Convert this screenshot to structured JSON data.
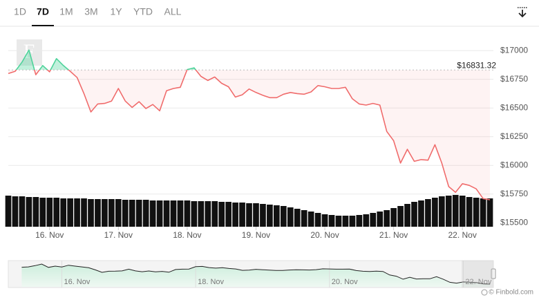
{
  "range_buttons": [
    "1D",
    "7D",
    "1M",
    "3M",
    "1Y",
    "YTD",
    "ALL"
  ],
  "selected_range": "7D",
  "watermark": "F",
  "credit": "© Finbold.com",
  "chart_data": {
    "type": "line",
    "x": [
      15.4,
      15.5,
      15.6,
      15.7,
      15.8,
      15.9,
      16.0,
      16.1,
      16.2,
      16.3,
      16.4,
      16.5,
      16.6,
      16.7,
      16.8,
      16.9,
      17.0,
      17.1,
      17.2,
      17.3,
      17.4,
      17.5,
      17.6,
      17.7,
      17.8,
      17.9,
      18.0,
      18.1,
      18.2,
      18.3,
      18.4,
      18.5,
      18.6,
      18.7,
      18.8,
      18.9,
      19.0,
      19.1,
      19.2,
      19.3,
      19.4,
      19.5,
      19.6,
      19.7,
      19.8,
      19.9,
      20.0,
      20.1,
      20.2,
      20.3,
      20.4,
      20.5,
      20.6,
      20.7,
      20.8,
      20.9,
      21.0,
      21.1,
      21.2,
      21.3,
      21.4,
      21.5,
      21.6,
      21.7,
      21.8,
      21.9,
      22.0,
      22.1,
      22.2,
      22.3,
      22.4
    ],
    "values": [
      16800,
      16820,
      16900,
      17005,
      16790,
      16870,
      16815,
      16930,
      16870,
      16820,
      16765,
      16625,
      16465,
      16535,
      16540,
      16560,
      16670,
      16560,
      16505,
      16555,
      16495,
      16530,
      16475,
      16650,
      16670,
      16680,
      16835,
      16850,
      16775,
      16740,
      16770,
      16715,
      16685,
      16595,
      16615,
      16665,
      16635,
      16610,
      16590,
      16590,
      16620,
      16635,
      16625,
      16620,
      16640,
      16695,
      16685,
      16670,
      16670,
      16680,
      16580,
      16535,
      16525,
      16540,
      16525,
      16295,
      16215,
      16020,
      16140,
      16035,
      16050,
      16045,
      16180,
      16020,
      15815,
      15765,
      15840,
      15825,
      15795,
      15710,
      15700
    ],
    "volume": [
      45,
      44,
      44,
      43,
      43,
      42,
      42,
      42,
      41,
      41,
      41,
      41,
      40,
      40,
      40,
      40,
      40,
      39,
      39,
      39,
      39,
      38,
      38,
      38,
      38,
      38,
      38,
      37,
      37,
      37,
      37,
      36,
      36,
      35,
      35,
      34,
      34,
      33,
      32,
      31,
      30,
      28,
      26,
      24,
      22,
      20,
      18,
      17,
      16,
      16,
      16,
      17,
      18,
      20,
      22,
      24,
      27,
      30,
      33,
      36,
      38,
      40,
      42,
      44,
      45,
      46,
      45,
      43,
      42,
      41,
      41
    ],
    "baseline": {
      "value": 16831.32,
      "label": "$16831.32"
    },
    "color_above": "#4dd39a",
    "color_below": "#f06b6b",
    "volume_color": "#111111",
    "grid": true,
    "xlim": [
      15.4,
      22.45
    ],
    "ylim": [
      15465,
      17200
    ],
    "xticks": [
      {
        "value": 16,
        "label": "16. Nov"
      },
      {
        "value": 17,
        "label": "17. Nov"
      },
      {
        "value": 18,
        "label": "18. Nov"
      },
      {
        "value": 19,
        "label": "19. Nov"
      },
      {
        "value": 20,
        "label": "20. Nov"
      },
      {
        "value": 21,
        "label": "21. Nov"
      },
      {
        "value": 22,
        "label": "22. Nov"
      }
    ],
    "yticks": [
      {
        "value": 17000,
        "label": "$17000"
      },
      {
        "value": 16750,
        "label": "$16750"
      },
      {
        "value": 16500,
        "label": "$16500"
      },
      {
        "value": 16250,
        "label": "$16250"
      },
      {
        "value": 16000,
        "label": "$16000"
      },
      {
        "value": 15750,
        "label": "$15750"
      },
      {
        "value": 15500,
        "label": "$15500"
      }
    ],
    "navigator": {
      "xlim": [
        15.2,
        22.45
      ],
      "xticks": [
        {
          "value": 16,
          "label": "16. Nov"
        },
        {
          "value": 18,
          "label": "18. Nov"
        },
        {
          "value": 20,
          "label": "20. Nov"
        },
        {
          "value": 22,
          "label": "22. Nov"
        }
      ]
    }
  }
}
